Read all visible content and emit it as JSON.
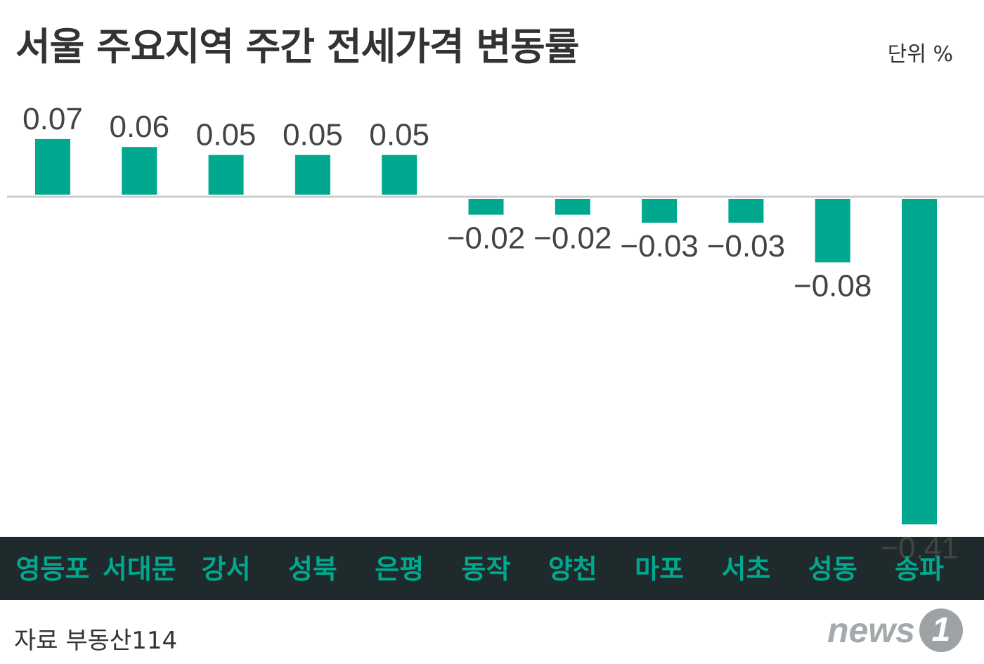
{
  "header": {
    "title": "서울 주요지역 주간 전세가격 변동률",
    "unit": "단위 %"
  },
  "footer": {
    "source": "자료 부동산114",
    "logo_text": "news",
    "logo_badge": "1"
  },
  "colors": {
    "bar": "#00a88f",
    "label_band_bg": "#1e2a2b",
    "category_text": "#00a88f",
    "value_text": "#444444",
    "baseline": "#cccccc"
  },
  "chart_data": {
    "type": "bar",
    "title": "서울 주요지역 주간 전세가격 변동률",
    "unit": "%",
    "categories": [
      "영등포",
      "서대문",
      "강서",
      "성북",
      "은평",
      "동작",
      "양천",
      "마포",
      "서초",
      "성동",
      "송파"
    ],
    "values": [
      0.07,
      0.06,
      0.05,
      0.05,
      0.05,
      -0.02,
      -0.02,
      -0.03,
      -0.03,
      -0.08,
      -0.41
    ],
    "value_labels": [
      "0.07",
      "0.06",
      "0.05",
      "0.05",
      "0.05",
      "−0.02",
      "−0.02",
      "−0.03",
      "−0.03",
      "−0.08",
      "−0.41"
    ],
    "ylim": [
      -0.41,
      0.07
    ],
    "grid": false,
    "legend": "none"
  }
}
